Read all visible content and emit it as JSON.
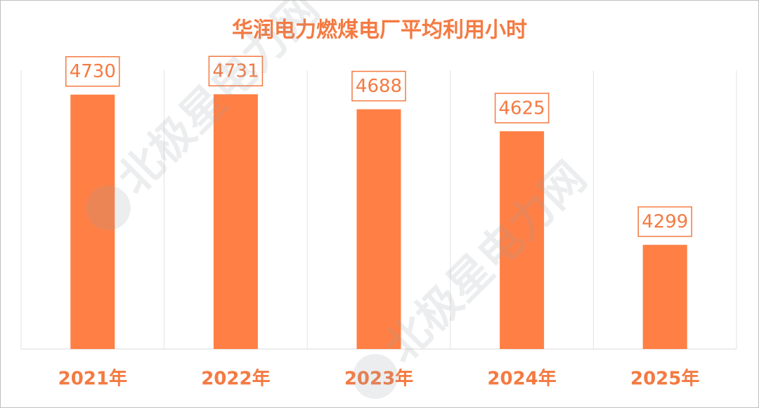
{
  "chart_data": {
    "type": "bar",
    "title": "华润电力燃煤电厂平均利用小时",
    "categories": [
      "2021年",
      "2022年",
      "2023年",
      "2024年",
      "2025年"
    ],
    "values": [
      4730,
      4731,
      4688,
      4625,
      4299
    ],
    "color": "#ff7f45",
    "ylim": [
      4000,
      4800
    ],
    "watermark": "北极星电力网"
  }
}
